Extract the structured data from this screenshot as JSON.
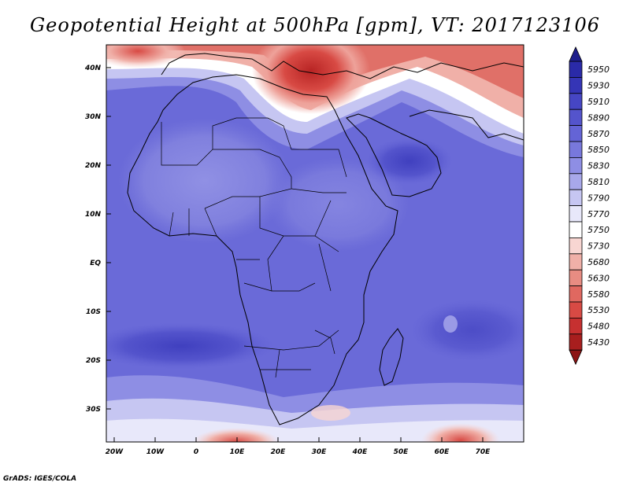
{
  "title": "Geopotential Height at 500hPa [gpm], VT: 2017123106",
  "credit": "GrADS: IGES/COLA",
  "map": {
    "lat_labels": [
      "40N",
      "30N",
      "20N",
      "10N",
      "EQ",
      "10S",
      "20S",
      "30S"
    ],
    "lon_labels": [
      "20W",
      "10W",
      "0",
      "10E",
      "20E",
      "30E",
      "40E",
      "50E",
      "60E",
      "70E"
    ]
  },
  "colorbar": {
    "levels": [
      "5950",
      "5930",
      "5910",
      "5890",
      "5870",
      "5850",
      "5830",
      "5810",
      "5790",
      "5770",
      "5750",
      "5730",
      "5680",
      "5630",
      "5580",
      "5530",
      "5480",
      "5430"
    ],
    "colors": [
      "#2a2aa8",
      "#3535b6",
      "#4646c4",
      "#5454cc",
      "#6464d6",
      "#7878dc",
      "#8e8ee4",
      "#a8a8ea",
      "#c6c6f2",
      "#e8e8fa",
      "#ffffff",
      "#f8d6d2",
      "#f0b0a8",
      "#e88c82",
      "#e06860",
      "#d84a44",
      "#c63030",
      "#a81e1e"
    ]
  }
}
